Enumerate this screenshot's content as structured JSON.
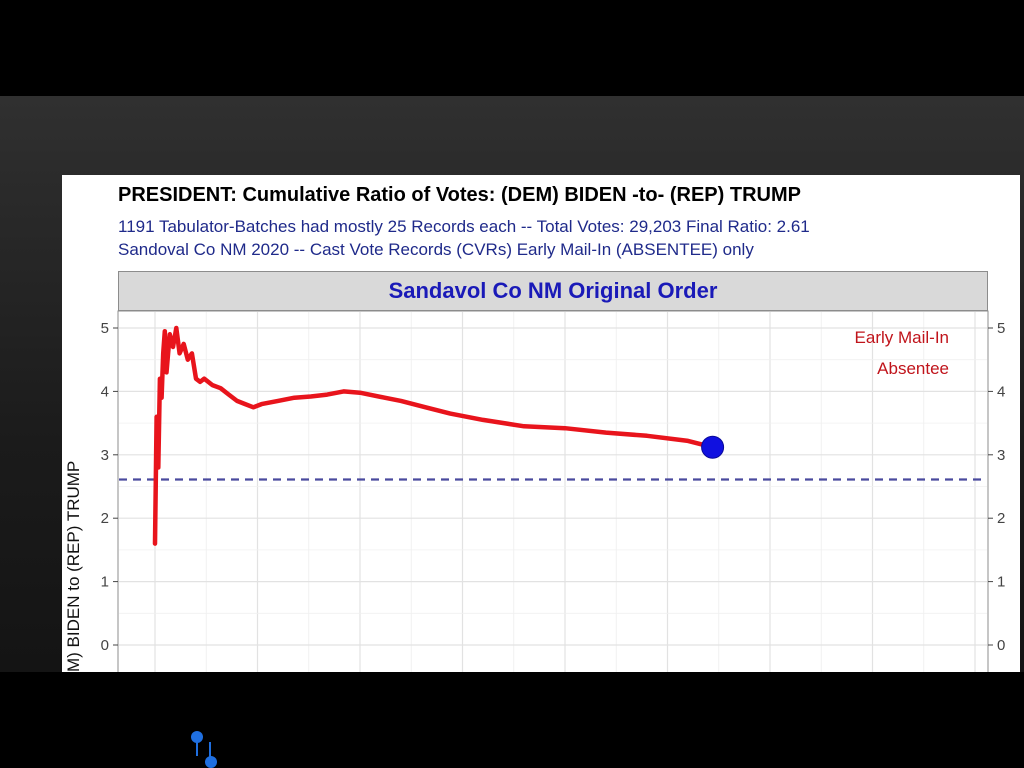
{
  "chart_data": {
    "type": "line",
    "title": "PRESIDENT: Cumulative Ratio of Votes: (DEM) BIDEN -to- (REP) TRUMP",
    "subtitle_lines": [
      "1191 Tabulator-Batches had mostly 25 Records each -- Total Votes: 29,203   Final Ratio: 2.61",
      "Sandoval Co NM 2020 -- Cast Vote Records (CVRs)  Early Mail-In (ABSENTEE) only"
    ],
    "panel_label": "Sandavol Co NM  Original Order",
    "ylabel": "M) BIDEN  to  (REP) TRUMP",
    "ylim": [
      0,
      5
    ],
    "yticks": [
      "0",
      "1",
      "2",
      "3",
      "4",
      "5"
    ],
    "ytick_values": [
      0,
      1,
      2,
      3,
      4,
      5
    ],
    "xlim": [
      0,
      1
    ],
    "grid": true,
    "reference_line": {
      "y": 2.61,
      "style": "dashed",
      "color": "#4a4a9e"
    },
    "legend_lines": [
      "Early Mail-In",
      "Absentee"
    ],
    "legend_position": "top-right",
    "series": [
      {
        "color": "#e8141c",
        "x": [
          0.0,
          0.002,
          0.004,
          0.006,
          0.008,
          0.01,
          0.012,
          0.014,
          0.016,
          0.018,
          0.022,
          0.026,
          0.03,
          0.035,
          0.04,
          0.045,
          0.05,
          0.055,
          0.06,
          0.07,
          0.08,
          0.09,
          0.1,
          0.11,
          0.12,
          0.13,
          0.15,
          0.17,
          0.19,
          0.21,
          0.23,
          0.25,
          0.28,
          0.3,
          0.33,
          0.36,
          0.4,
          0.45,
          0.5,
          0.55,
          0.6,
          0.65,
          0.68
        ],
        "values": [
          1.6,
          3.6,
          2.8,
          4.2,
          3.9,
          4.6,
          4.95,
          4.3,
          4.6,
          4.9,
          4.7,
          5.0,
          4.6,
          4.75,
          4.5,
          4.6,
          4.2,
          4.15,
          4.2,
          4.1,
          4.05,
          3.95,
          3.85,
          3.8,
          3.75,
          3.8,
          3.85,
          3.9,
          3.92,
          3.95,
          4.0,
          3.98,
          3.9,
          3.85,
          3.75,
          3.65,
          3.55,
          3.45,
          3.42,
          3.35,
          3.3,
          3.22,
          3.12
        ]
      }
    ],
    "end_marker": {
      "x": 0.68,
      "y": 3.12,
      "color": "#1010e0"
    }
  },
  "colors": {
    "title": "#000000",
    "subtitle": "#1f2a8a",
    "panel_label": "#1a1ab8",
    "line": "#e8141c",
    "marker": "#1010e0"
  },
  "cursor_icon": "pointer-cursor-icon"
}
